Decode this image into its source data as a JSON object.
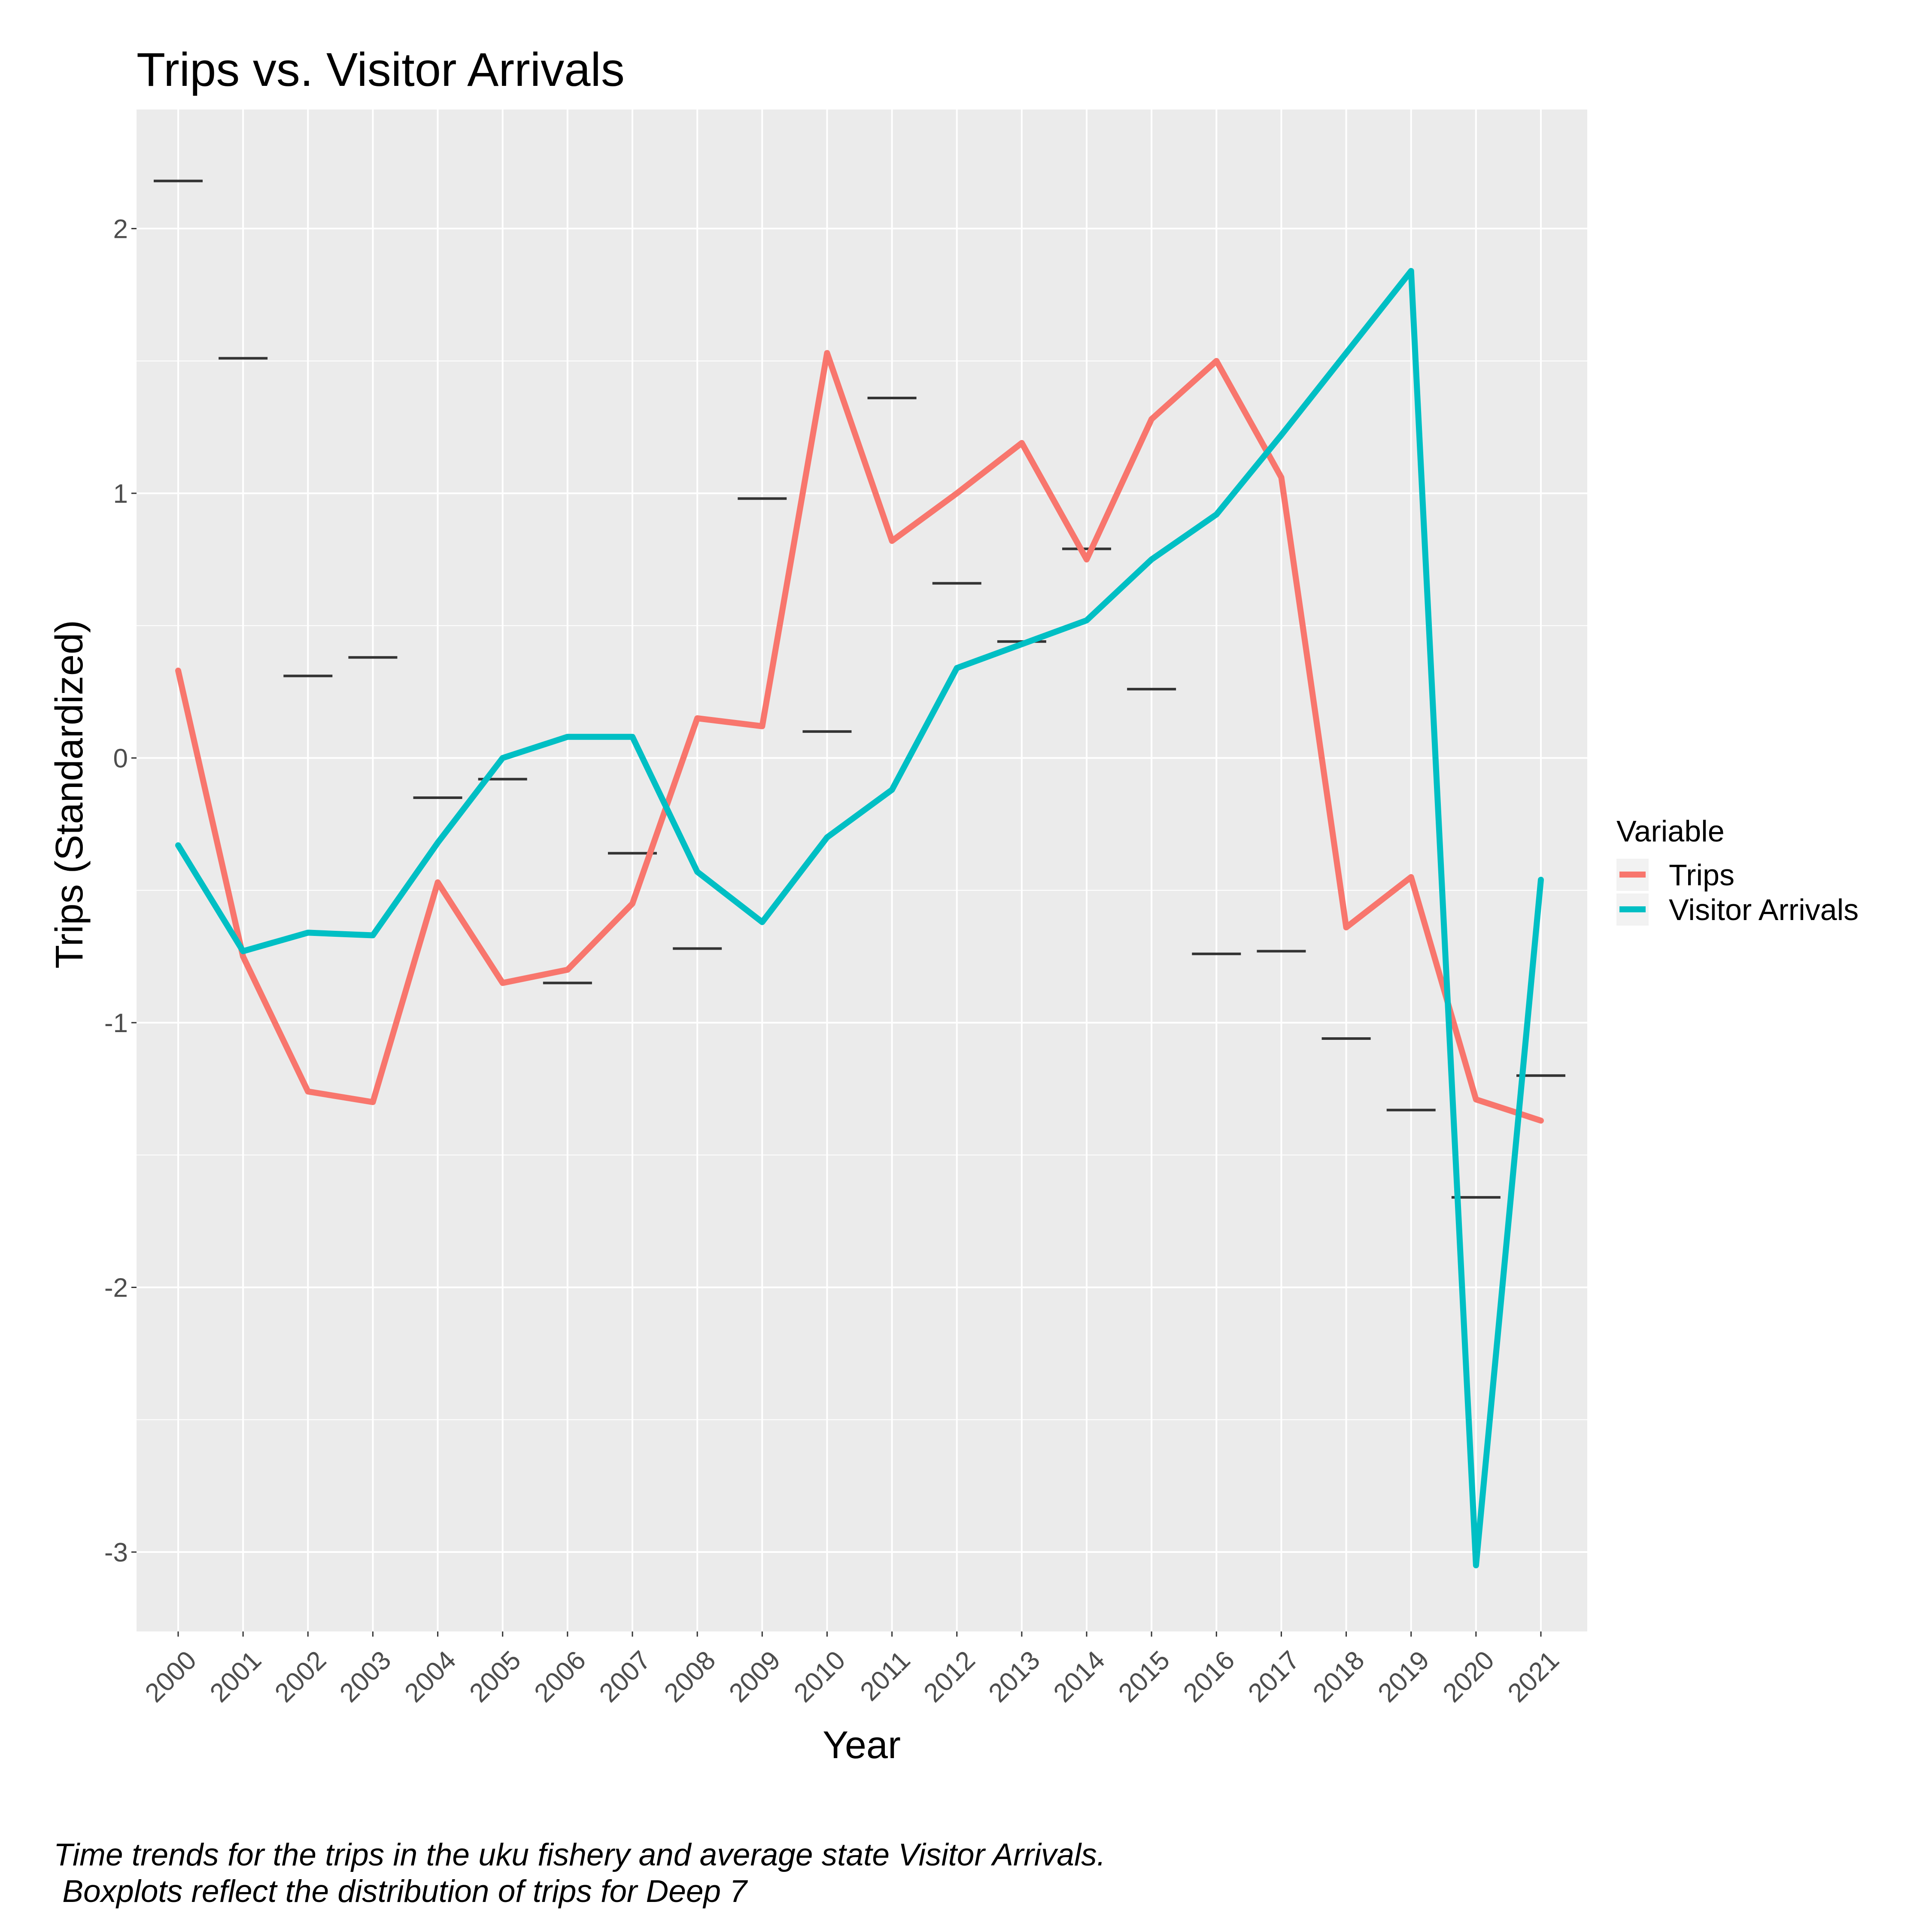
{
  "chart_data": {
    "type": "line",
    "title": "Trips vs. Visitor Arrivals",
    "xlabel": "Year",
    "ylabel": "Trips (Standardized)",
    "x": [
      "2000",
      "2001",
      "2002",
      "2003",
      "2004",
      "2005",
      "2006",
      "2007",
      "2008",
      "2009",
      "2010",
      "2011",
      "2012",
      "2013",
      "2014",
      "2015",
      "2016",
      "2017",
      "2018",
      "2019",
      "2020",
      "2021"
    ],
    "ylim": [
      -3.3,
      2.45
    ],
    "yticks": [
      -3,
      -2,
      -1,
      0,
      1,
      2
    ],
    "grid": true,
    "series": [
      {
        "name": "Trips",
        "color": "#F8766D",
        "values": [
          0.33,
          -0.75,
          -1.26,
          -1.3,
          -0.47,
          -0.85,
          -0.8,
          -0.55,
          0.15,
          0.12,
          1.53,
          0.82,
          1.0,
          1.19,
          0.75,
          1.28,
          1.5,
          1.06,
          -0.64,
          -0.45,
          -1.29,
          -1.37
        ]
      },
      {
        "name": "Visitor Arrivals",
        "color": "#00BFC4",
        "values": [
          -0.33,
          -0.73,
          -0.66,
          -0.67,
          -0.32,
          0.0,
          0.08,
          0.08,
          -0.43,
          -0.62,
          -0.3,
          -0.12,
          0.34,
          0.43,
          0.52,
          0.75,
          0.92,
          1.22,
          1.53,
          1.84,
          -3.05,
          -0.46
        ]
      }
    ],
    "deep7_boxplot_medians": [
      2.18,
      1.51,
      0.31,
      0.38,
      -0.15,
      -0.08,
      -0.85,
      -0.36,
      -0.72,
      0.98,
      0.1,
      1.36,
      0.66,
      0.44,
      0.79,
      0.26,
      -0.74,
      -0.73,
      -1.06,
      -1.33,
      -1.66,
      -1.2
    ],
    "boxplot_color": "#333333",
    "legend": {
      "title": "Variable",
      "placement": "right"
    },
    "caption_lines": [
      "Time trends for the trips in the uku fishery and average state Visitor Arrivals.",
      " Boxplots reflect the distribution of trips for Deep 7"
    ],
    "panel_bg": "#EBEBEB",
    "grid_color": "#FFFFFF"
  }
}
